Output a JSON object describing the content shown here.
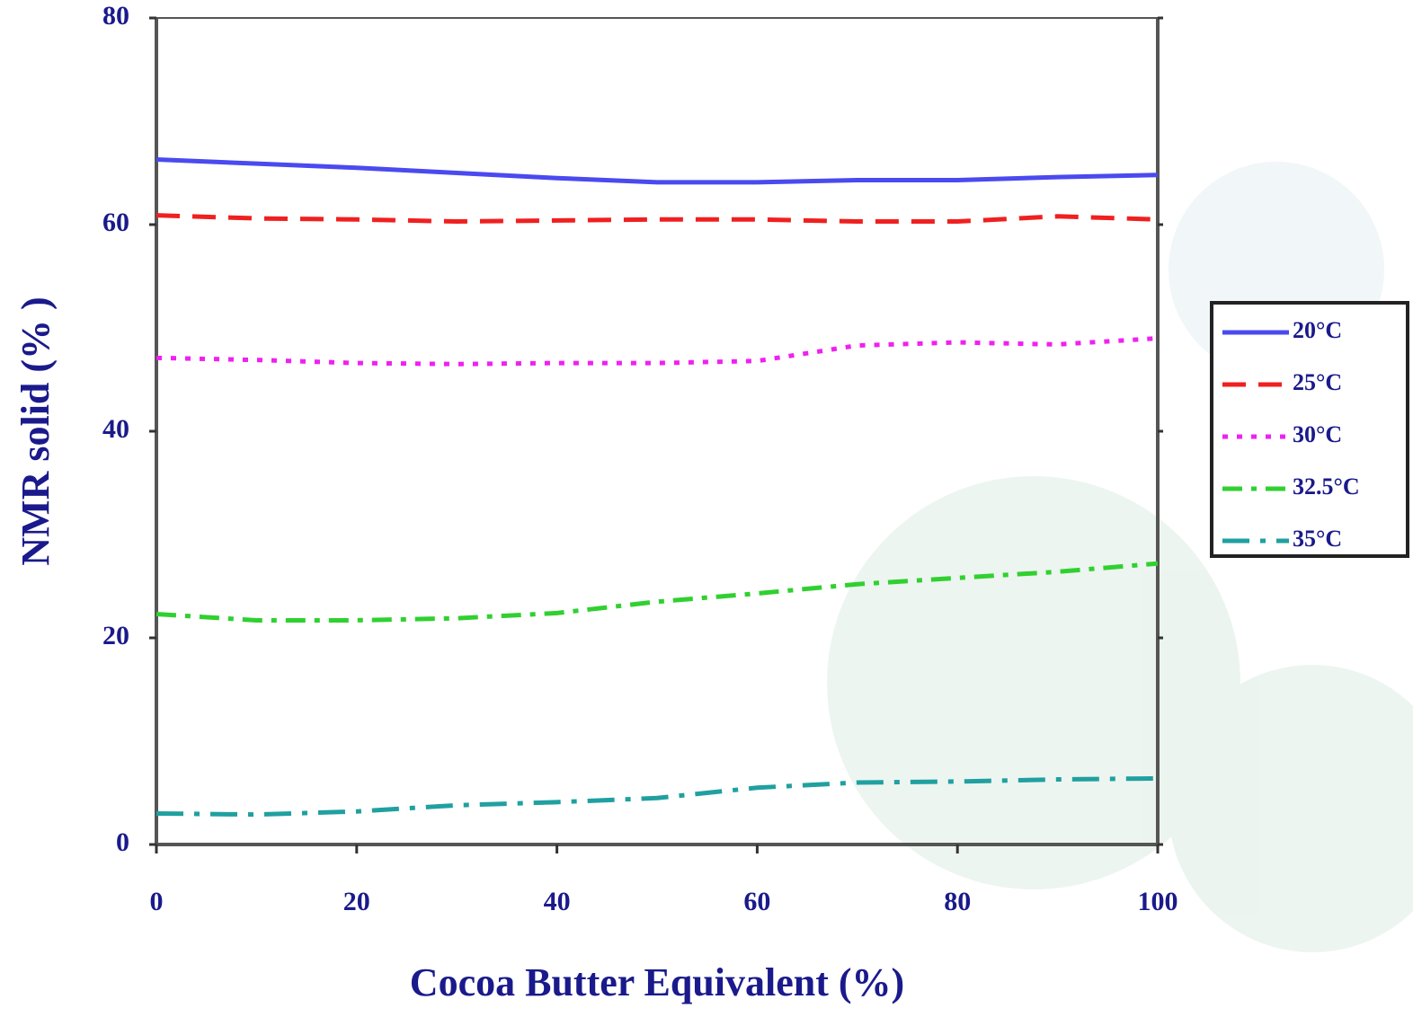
{
  "chart_data": {
    "type": "line",
    "x_label": "Cocoa Butter Equivalent (%)",
    "y_label": "NMR solid (% )",
    "x": [
      0,
      10,
      20,
      30,
      40,
      50,
      60,
      70,
      80,
      90,
      100
    ],
    "series": [
      {
        "name": "20°C",
        "color": "#4a4af0",
        "line_style": "solid",
        "values": [
          66.3,
          65.9,
          65.5,
          65.0,
          64.5,
          64.1,
          64.1,
          64.3,
          64.3,
          64.6,
          64.8
        ]
      },
      {
        "name": "25°C",
        "color": "#f02020",
        "line_style": "dashed",
        "values": [
          60.9,
          60.6,
          60.5,
          60.3,
          60.4,
          60.5,
          60.5,
          60.3,
          60.3,
          60.8,
          60.5
        ]
      },
      {
        "name": "30°C",
        "color": "#f020f0",
        "line_style": "dotted",
        "values": [
          47.1,
          46.9,
          46.6,
          46.5,
          46.6,
          46.6,
          46.8,
          48.3,
          48.6,
          48.4,
          49.0
        ]
      },
      {
        "name": "32.5°C",
        "color": "#30d030",
        "line_style": "dashdot",
        "values": [
          22.3,
          21.7,
          21.7,
          21.9,
          22.4,
          23.5,
          24.3,
          25.2,
          25.8,
          26.4,
          27.2
        ]
      },
      {
        "name": "35°C",
        "color": "#20a0a0",
        "line_style": "longdashdot",
        "values": [
          3.0,
          2.9,
          3.2,
          3.8,
          4.1,
          4.5,
          5.5,
          6.0,
          6.1,
          6.3,
          6.4
        ]
      }
    ],
    "xlim": [
      0,
      100
    ],
    "xticks": [
      0,
      20,
      40,
      60,
      80,
      100
    ],
    "ylim": [
      0,
      80
    ],
    "yticks": [
      0,
      20,
      40,
      60,
      80
    ],
    "legend": "right"
  }
}
